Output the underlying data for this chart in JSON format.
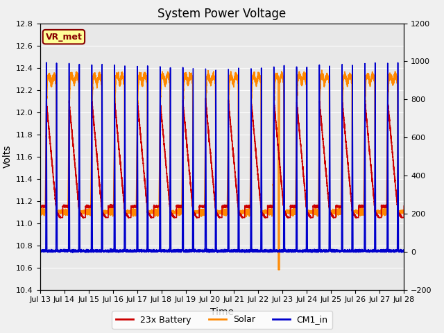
{
  "title": "System Power Voltage",
  "xlabel": "Time",
  "ylabel": "Volts",
  "ylim_left": [
    10.4,
    12.8
  ],
  "ylim_right": [
    -200,
    1200
  ],
  "yticks_left": [
    10.4,
    10.6,
    10.8,
    11.0,
    11.2,
    11.4,
    11.6,
    11.8,
    12.0,
    12.2,
    12.4,
    12.6,
    12.8
  ],
  "yticks_right": [
    -200,
    0,
    200,
    400,
    600,
    800,
    1000,
    1200
  ],
  "xtick_labels": [
    "Jul 13",
    "Jul 14",
    "Jul 15",
    "Jul 16",
    "Jul 17",
    "Jul 18",
    "Jul 19",
    "Jul 20",
    "Jul 21",
    "Jul 22",
    "Jul 23",
    "Jul 24",
    "Jul 25",
    "Jul 26",
    "Jul 27",
    "Jul 28"
  ],
  "n_days": 16,
  "color_battery": "#cc0000",
  "color_solar": "#ff8800",
  "color_cm1": "#0000cc",
  "line_width": 1.2,
  "fig_bg_color": "#f0f0f0",
  "plot_bg_color": "#e0e0e0",
  "annotation_text": "VR_met",
  "annotation_color": "#880000",
  "annotation_bg": "#ffff99",
  "legend_labels": [
    "23x Battery",
    "Solar",
    "CM1_in"
  ],
  "title_fontsize": 12,
  "axis_fontsize": 10,
  "tick_fontsize": 8
}
